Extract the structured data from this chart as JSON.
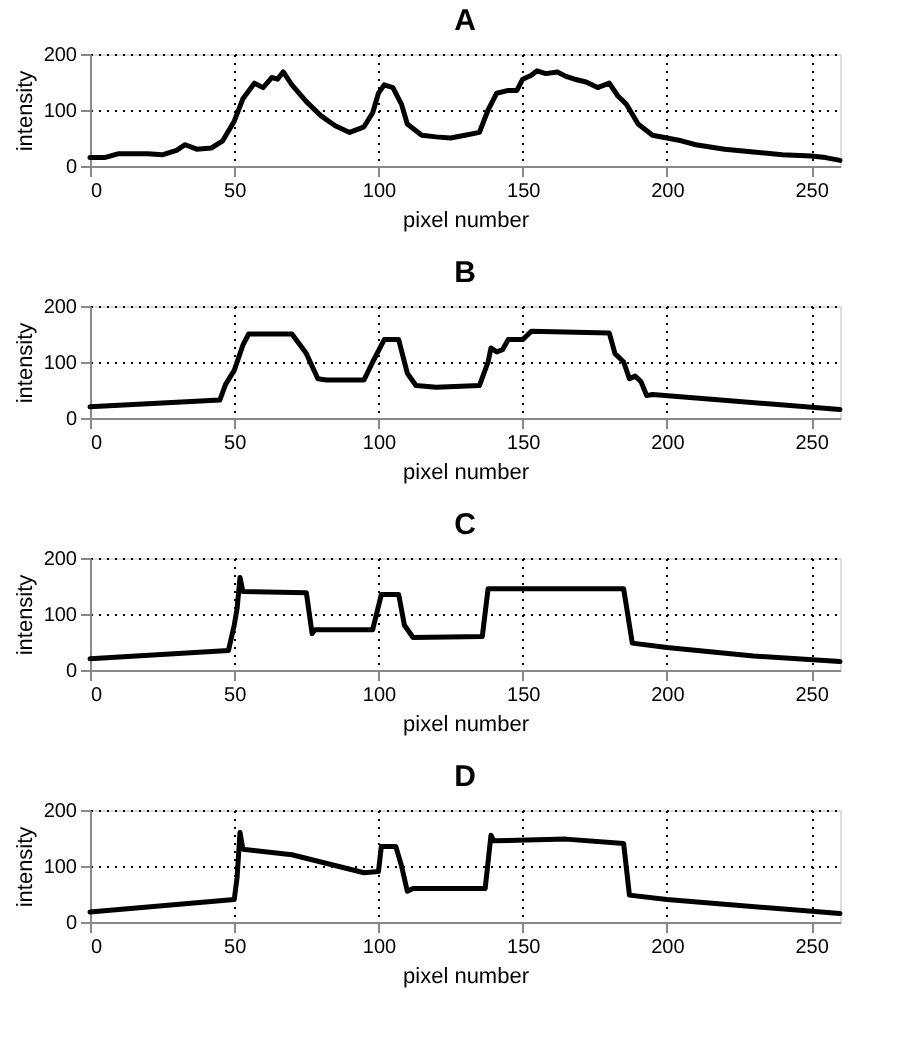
{
  "chart_data": [
    {
      "type": "line",
      "title": "A",
      "xlabel": "pixel number",
      "ylabel": "intensity",
      "xlim": [
        0,
        260
      ],
      "ylim": [
        0,
        200
      ],
      "xticks": [
        0,
        50,
        100,
        150,
        200,
        250
      ],
      "yticks": [
        0,
        100,
        200
      ],
      "grid": true,
      "line_style": "solid",
      "x": [
        0,
        5,
        10,
        20,
        25,
        30,
        33,
        37,
        42,
        46,
        50,
        53,
        57,
        60,
        63,
        65,
        67,
        70,
        75,
        80,
        85,
        90,
        95,
        98,
        100,
        102,
        105,
        108,
        110,
        115,
        120,
        125,
        130,
        135,
        138,
        141,
        145,
        148,
        150,
        153,
        155,
        158,
        162,
        165,
        168,
        172,
        176,
        180,
        183,
        186,
        190,
        195,
        200,
        205,
        210,
        220,
        230,
        240,
        250,
        255,
        260
      ],
      "series": [
        {
          "color": "#000000",
          "values": [
            15,
            15,
            22,
            22,
            20,
            28,
            38,
            30,
            32,
            45,
            80,
            120,
            148,
            140,
            158,
            155,
            168,
            145,
            115,
            90,
            72,
            60,
            70,
            95,
            130,
            145,
            140,
            110,
            75,
            55,
            52,
            50,
            55,
            60,
            100,
            130,
            135,
            135,
            155,
            162,
            170,
            165,
            168,
            160,
            155,
            150,
            140,
            148,
            125,
            110,
            75,
            55,
            50,
            45,
            38,
            30,
            25,
            20,
            18,
            15,
            10
          ]
        }
      ]
    },
    {
      "type": "line",
      "title": "B",
      "xlabel": "pixel number",
      "ylabel": "intensity",
      "xlim": [
        0,
        260
      ],
      "ylim": [
        0,
        200
      ],
      "xticks": [
        0,
        50,
        100,
        150,
        200,
        250
      ],
      "yticks": [
        0,
        100,
        200
      ],
      "grid": true,
      "line_style": "solid",
      "x": [
        0,
        45,
        47,
        50,
        53,
        55,
        70,
        75,
        79,
        82,
        95,
        98,
        102,
        107,
        110,
        113,
        120,
        135,
        138,
        139,
        141,
        143,
        145,
        150,
        153,
        180,
        182,
        185,
        187,
        189,
        191,
        193,
        195,
        260
      ],
      "series": [
        {
          "color": "#000000",
          "values": [
            20,
            32,
            60,
            85,
            130,
            150,
            150,
            115,
            70,
            68,
            68,
            100,
            140,
            140,
            80,
            58,
            55,
            58,
            100,
            125,
            118,
            122,
            140,
            140,
            155,
            152,
            115,
            100,
            70,
            75,
            65,
            40,
            42,
            15
          ]
        }
      ]
    },
    {
      "type": "line",
      "title": "C",
      "xlabel": "pixel number",
      "ylabel": "intensity",
      "xlim": [
        0,
        260
      ],
      "ylim": [
        0,
        200
      ],
      "xticks": [
        0,
        50,
        100,
        150,
        200,
        250
      ],
      "yticks": [
        0,
        100,
        200
      ],
      "grid": true,
      "line_style": "solid",
      "x": [
        0,
        48,
        50,
        51,
        52,
        53,
        75,
        77,
        78,
        98,
        101,
        107,
        109,
        112,
        136,
        138,
        185,
        188,
        200,
        230,
        260
      ],
      "series": [
        {
          "color": "#000000",
          "values": [
            20,
            35,
            80,
            110,
            165,
            140,
            138,
            65,
            72,
            72,
            135,
            135,
            80,
            58,
            60,
            145,
            145,
            48,
            40,
            25,
            15
          ]
        }
      ]
    },
    {
      "type": "line",
      "title": "D",
      "xlabel": "pixel number",
      "ylabel": "intensity",
      "xlim": [
        0,
        260
      ],
      "ylim": [
        0,
        200
      ],
      "xticks": [
        0,
        50,
        100,
        150,
        200,
        250
      ],
      "yticks": [
        0,
        100,
        200
      ],
      "grid": true,
      "line_style": "solid",
      "x": [
        0,
        50,
        51,
        52,
        53,
        70,
        95,
        100,
        101,
        106,
        108,
        110,
        112,
        137,
        139,
        140,
        165,
        185,
        187,
        200,
        260
      ],
      "series": [
        {
          "color": "#000000",
          "values": [
            18,
            40,
            80,
            160,
            130,
            120,
            88,
            90,
            135,
            135,
            100,
            55,
            60,
            60,
            155,
            145,
            148,
            140,
            48,
            40,
            15
          ]
        }
      ]
    }
  ]
}
